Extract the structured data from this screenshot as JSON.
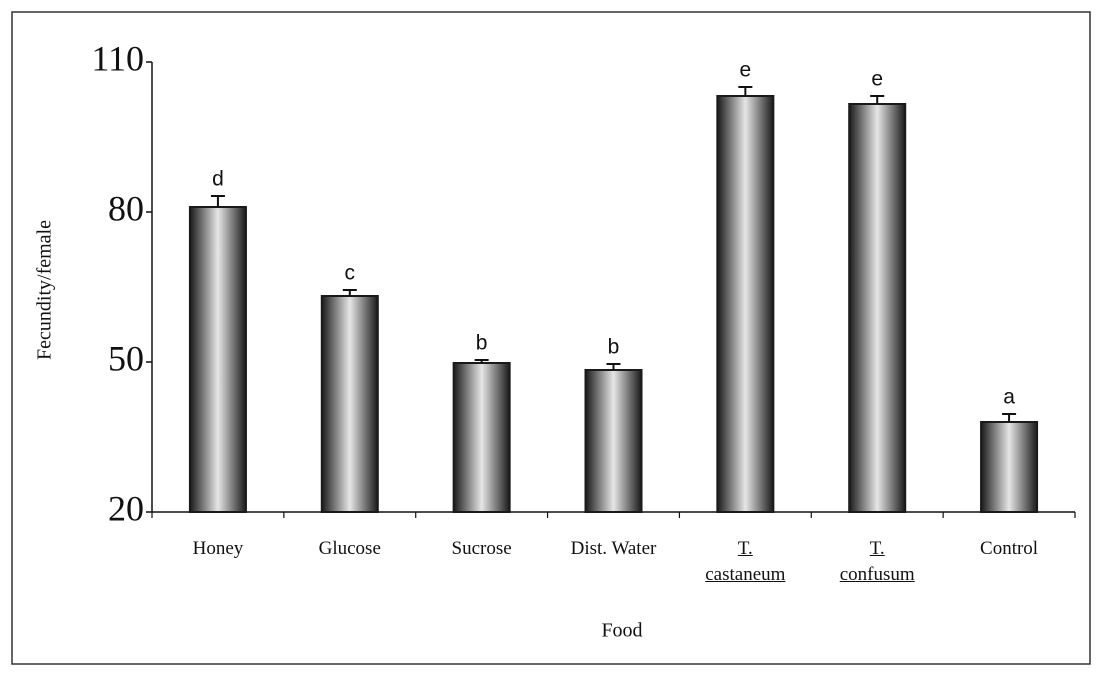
{
  "chart_data": {
    "type": "bar",
    "x_label": "Food",
    "y_label": "Fecundity/female",
    "categories": [
      "Honey",
      "Glucose",
      "Sucrose",
      "Dist. Water",
      "T. castaneum",
      "T. confusum",
      "Control"
    ],
    "values": [
      81,
      63.2,
      49.8,
      48.4,
      103.2,
      101.6,
      38
    ],
    "errors": [
      2.2,
      1.2,
      0.6,
      1.2,
      1.8,
      1.6,
      1.6
    ],
    "annotations": [
      "d",
      "c",
      "b",
      "b",
      "e",
      "e",
      "a"
    ],
    "color": "#1a1a1a",
    "ylim": [
      20,
      110
    ],
    "yticks": [
      20,
      50,
      80,
      110
    ],
    "grid": false
  }
}
